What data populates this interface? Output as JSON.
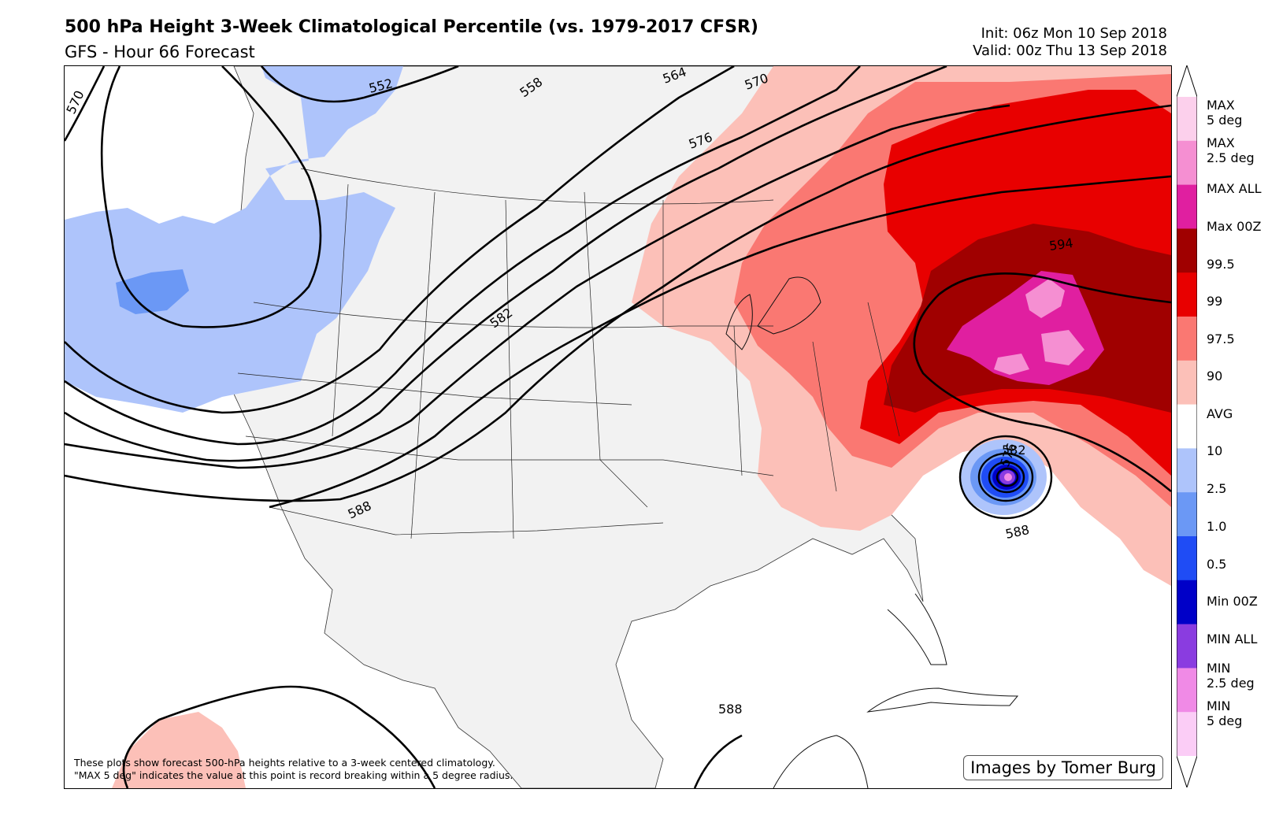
{
  "header": {
    "title": "500 hPa Height 3-Week Climatological Percentile (vs.  1979-2017 CFSR)",
    "subtitle": "GFS - Hour 66 Forecast",
    "init": "Init: 06z Mon 10 Sep 2018",
    "valid": "Valid: 00z Thu 13 Sep 2018"
  },
  "map": {
    "contour_labels": [
      "570",
      "552",
      "558",
      "564",
      "570",
      "576",
      "582",
      "588",
      "594",
      "582",
      "576",
      "588",
      "588"
    ],
    "footnote_line1": "These plots show forecast 500-hPa heights relative to a 3-week centered climatology.",
    "footnote_line2": "\"MAX 5 deg\" indicates the value at this point is record breaking within a 5 degree radius.",
    "credit": "Images by Tomer Burg"
  },
  "colorbar": {
    "labels": [
      "MAX\n5 deg",
      "MAX\n2.5 deg",
      "MAX ALL",
      "Max 00Z",
      "99.5",
      "99",
      "97.5",
      "90",
      "AVG",
      "10",
      "2.5",
      "1.0",
      "0.5",
      "Min 00Z",
      "MIN ALL",
      "MIN\n2.5 deg",
      "MIN\n5 deg"
    ],
    "colors": [
      "#ffffff",
      "#fcd0ec",
      "#f58fd2",
      "#e01fa0",
      "#a00000",
      "#e80000",
      "#fa7872",
      "#fcc0b8",
      "#ffffff",
      "#aec4fb",
      "#6b98f5",
      "#1f4cf5",
      "#0000c8",
      "#8a3ce0",
      "#f08ae6",
      "#fbcdf6",
      "#ffffff"
    ]
  },
  "colors": {
    "land": "#f2f2f2",
    "ocean": "#ffffff",
    "contour": "#000000"
  }
}
